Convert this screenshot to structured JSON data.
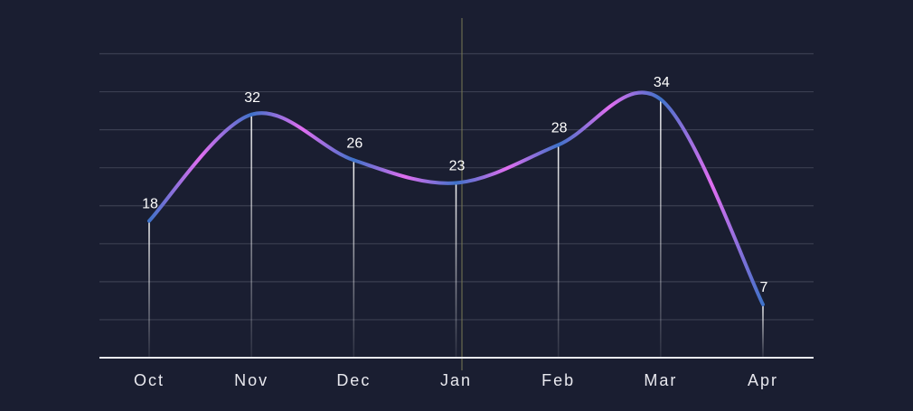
{
  "chart_data": {
    "type": "line",
    "categories": [
      "Oct",
      "Nov",
      "Dec",
      "Jan",
      "Feb",
      "Mar",
      "Apr"
    ],
    "values": [
      18,
      32,
      26,
      23,
      28,
      34,
      7
    ],
    "data_labels": [
      "18",
      "32",
      "26",
      "23",
      "28",
      "34",
      "7"
    ],
    "title": "",
    "xlabel": "",
    "ylabel": "",
    "ylim": [
      0,
      40
    ],
    "grid": true,
    "smooth": true,
    "colors": {
      "background": "#1a1e31",
      "gridline": "#3a3e51",
      "axis": "#e9e9f0",
      "line_start": "#3f72c9",
      "line_end": "#e06ef0",
      "drop_line": "#f2f2f6",
      "cursor_line": "#7a7a55"
    }
  }
}
